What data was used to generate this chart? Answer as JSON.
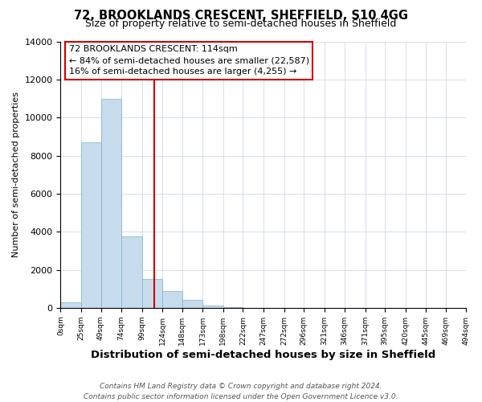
{
  "title": "72, BROOKLANDS CRESCENT, SHEFFIELD, S10 4GG",
  "subtitle": "Size of property relative to semi-detached houses in Sheffield",
  "xlabel": "Distribution of semi-detached houses by size in Sheffield",
  "ylabel": "Number of semi-detached properties",
  "footnote1": "Contains HM Land Registry data © Crown copyright and database right 2024.",
  "footnote2": "Contains public sector information licensed under the Open Government Licence v3.0.",
  "annotation_line1": "72 BROOKLANDS CRESCENT: 114sqm",
  "annotation_line2": "← 84% of semi-detached houses are smaller (22,587)",
  "annotation_line3": "16% of semi-detached houses are larger (4,255) →",
  "property_size": 114,
  "bar_lefts": [
    0,
    25,
    49,
    74,
    99,
    124,
    148,
    173,
    198,
    222,
    247,
    272,
    296,
    321,
    346,
    371,
    395,
    420,
    445,
    469
  ],
  "bar_widths": [
    25,
    24,
    25,
    25,
    25,
    24,
    25,
    25,
    24,
    25,
    25,
    24,
    25,
    25,
    25,
    24,
    25,
    25,
    24,
    25
  ],
  "bar_heights": [
    300,
    8700,
    11000,
    3750,
    1500,
    900,
    400,
    100,
    50,
    0,
    0,
    0,
    0,
    0,
    0,
    0,
    0,
    0,
    0,
    0
  ],
  "bar_color": "#c6dcec",
  "bar_edgecolor": "#7bafd4",
  "vline_color": "#cc0000",
  "vline_x": 114,
  "xlim": [
    0,
    494
  ],
  "ylim": [
    0,
    14000
  ],
  "yticks": [
    0,
    2000,
    4000,
    6000,
    8000,
    10000,
    12000,
    14000
  ],
  "xtick_positions": [
    0,
    25,
    49,
    74,
    99,
    124,
    148,
    173,
    198,
    222,
    247,
    272,
    296,
    321,
    346,
    371,
    395,
    420,
    445,
    469,
    494
  ],
  "xtick_labels": [
    "0sqm",
    "25sqm",
    "49sqm",
    "74sqm",
    "99sqm",
    "124sqm",
    "148sqm",
    "173sqm",
    "198sqm",
    "222sqm",
    "247sqm",
    "272sqm",
    "296sqm",
    "321sqm",
    "346sqm",
    "371sqm",
    "395sqm",
    "420sqm",
    "445sqm",
    "469sqm",
    "494sqm"
  ],
  "annotation_box_facecolor": "#ffffff",
  "annotation_box_edgecolor": "#cc0000",
  "title_fontsize": 10.5,
  "subtitle_fontsize": 9,
  "xlabel_fontsize": 9.5,
  "ylabel_fontsize": 8,
  "ytick_fontsize": 8,
  "xtick_fontsize": 6.5,
  "annotation_fontsize": 8,
  "footnote_fontsize": 6.5
}
